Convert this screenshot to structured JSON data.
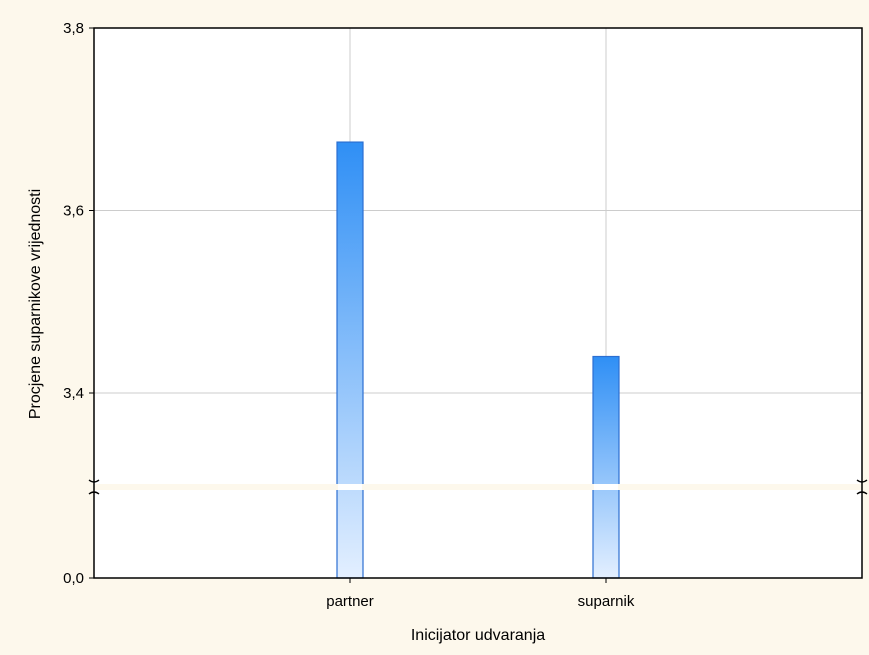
{
  "colors": {
    "page_background": "#fdf8ec",
    "plot_background": "#ffffff",
    "bar_top": "#2f8ff5",
    "bar_bottom": "#e3efff",
    "bar_border": "#2c6fd1",
    "grid": "#cccccc"
  },
  "chart_data": {
    "type": "bar",
    "categories": [
      "partner",
      "suparnik"
    ],
    "values": [
      3.675,
      3.44
    ],
    "xlabel": "Inicijator udvaranja",
    "ylabel": "Procjene suparnikove vrijednosti",
    "yticks": [
      "3,8",
      "3,6",
      "3,4",
      "0,0"
    ],
    "scale_break": "between 0,0 and ~3,3",
    "upper_ylim": [
      3.3,
      3.8
    ],
    "grid": true,
    "legend": "none"
  }
}
